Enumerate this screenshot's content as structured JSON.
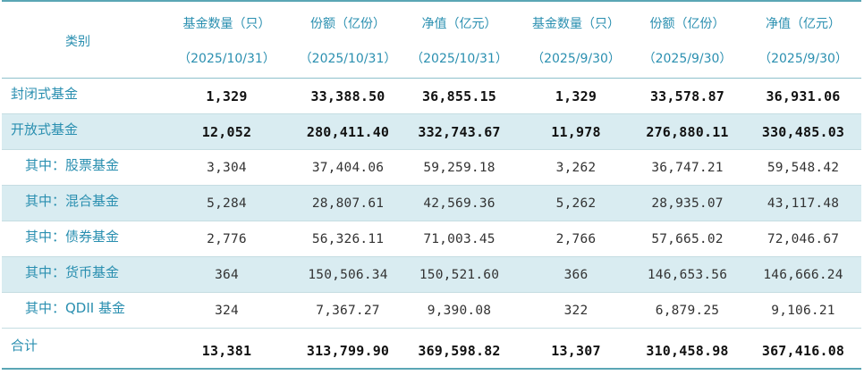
{
  "headers": [
    {
      "title": "类别",
      "subtitle": ""
    },
    {
      "title": "基金数量（只）",
      "subtitle": "（2025/10/31）"
    },
    {
      "title": "份额（亿份）",
      "subtitle": "（2025/10/31）"
    },
    {
      "title": "净值（亿元）",
      "subtitle": "（2025/10/31）"
    },
    {
      "title": "基金数量（只）",
      "subtitle": "（2025/9/30）"
    },
    {
      "title": "份额（亿份）",
      "subtitle": "（2025/9/30）"
    },
    {
      "title": "净值（亿元）",
      "subtitle": "（2025/9/30）"
    }
  ],
  "rows": [
    {
      "label": "封闭式基金",
      "values": [
        "1,329",
        "33,388.50",
        "36,855.15",
        "1,329",
        "33,578.87",
        "36,931.06"
      ]
    },
    {
      "label": "开放式基金",
      "values": [
        "12,052",
        "280,411.40",
        "332,743.67",
        "11,978",
        "276,880.11",
        "330,485.03"
      ]
    },
    {
      "label": "其中：股票基金",
      "values": [
        "3,304",
        "37,404.06",
        "59,259.18",
        "3,262",
        "36,747.21",
        "59,548.42"
      ]
    },
    {
      "label": "其中：混合基金",
      "values": [
        "5,284",
        "28,807.61",
        "42,569.36",
        "5,262",
        "28,935.07",
        "43,117.48"
      ]
    },
    {
      "label": "其中：债券基金",
      "values": [
        "2,776",
        "56,326.11",
        "71,003.45",
        "2,766",
        "57,665.02",
        "72,046.67"
      ]
    },
    {
      "label": "其中：货币基金",
      "values": [
        "364",
        "150,506.34",
        "150,521.60",
        "366",
        "146,653.56",
        "146,666.24"
      ]
    },
    {
      "label": "其中：QDII 基金",
      "values": [
        "324",
        "7,367.27",
        "9,390.08",
        "322",
        "6,879.25",
        "9,106.21"
      ]
    },
    {
      "label": "合计",
      "values": [
        "13,381",
        "313,799.90",
        "369,598.82",
        "13,307",
        "310,458.98",
        "367,416.08"
      ]
    }
  ],
  "colors": {
    "accent_text": "#2a8fb0",
    "row_shade": "#d9ecf1",
    "rule": "#5aa6b5"
  }
}
